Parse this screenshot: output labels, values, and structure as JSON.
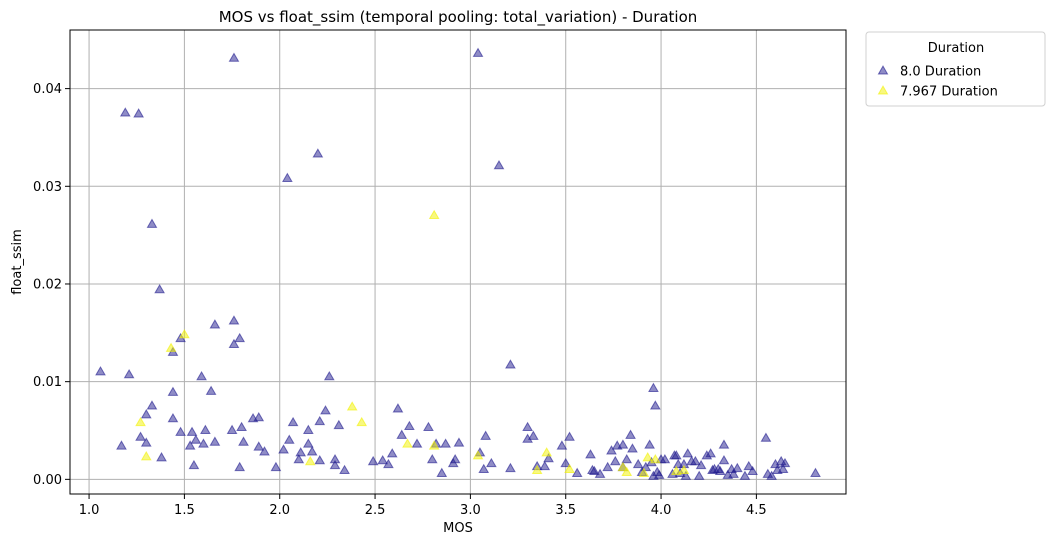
{
  "chart_data": {
    "type": "scatter",
    "title": "MOS vs float_ssim (temporal pooling: total_variation) - Duration",
    "xlabel": "MOS",
    "ylabel": "float_ssim",
    "xlim": [
      0.9,
      4.97
    ],
    "ylim": [
      -0.0015,
      0.046
    ],
    "xticks": [
      1.0,
      1.5,
      2.0,
      2.5,
      3.0,
      3.5,
      4.0,
      4.5
    ],
    "xtick_labels": [
      "1.0",
      "1.5",
      "2.0",
      "2.5",
      "3.0",
      "3.5",
      "4.0",
      "4.5"
    ],
    "yticks": [
      0.0,
      0.01,
      0.02,
      0.03,
      0.04
    ],
    "ytick_labels": [
      "0.00",
      "0.01",
      "0.02",
      "0.03",
      "0.04"
    ],
    "grid": true,
    "marker": "triangle-up",
    "legend": {
      "title": "Duration",
      "placement": "outside-top-right"
    },
    "series": [
      {
        "name": "8.0 Duration",
        "color": "#1f1a8e",
        "points": [
          [
            1.06,
            0.011
          ],
          [
            1.19,
            0.0375
          ],
          [
            1.26,
            0.0374
          ],
          [
            1.21,
            0.0107
          ],
          [
            1.33,
            0.0261
          ],
          [
            1.37,
            0.0194
          ],
          [
            1.17,
            0.0034
          ],
          [
            1.27,
            0.0043
          ],
          [
            1.3,
            0.0066
          ],
          [
            1.33,
            0.0075
          ],
          [
            1.3,
            0.0037
          ],
          [
            1.38,
            0.0022
          ],
          [
            1.44,
            0.013
          ],
          [
            1.48,
            0.0144
          ],
          [
            1.44,
            0.0089
          ],
          [
            1.44,
            0.0062
          ],
          [
            1.48,
            0.0048
          ],
          [
            1.54,
            0.0048
          ],
          [
            1.53,
            0.0034
          ],
          [
            1.56,
            0.004
          ],
          [
            1.55,
            0.0014
          ],
          [
            1.59,
            0.0105
          ],
          [
            1.64,
            0.009
          ],
          [
            1.66,
            0.0158
          ],
          [
            1.6,
            0.0036
          ],
          [
            1.61,
            0.005
          ],
          [
            1.66,
            0.0038
          ],
          [
            1.76,
            0.0431
          ],
          [
            1.76,
            0.0162
          ],
          [
            1.76,
            0.0138
          ],
          [
            1.79,
            0.0144
          ],
          [
            1.75,
            0.005
          ],
          [
            1.81,
            0.0038
          ],
          [
            1.8,
            0.0053
          ],
          [
            1.79,
            0.0012
          ],
          [
            1.86,
            0.0062
          ],
          [
            1.89,
            0.0063
          ],
          [
            1.89,
            0.0033
          ],
          [
            1.92,
            0.0028
          ],
          [
            1.98,
            0.0012
          ],
          [
            2.04,
            0.0308
          ],
          [
            2.05,
            0.004
          ],
          [
            2.07,
            0.0058
          ],
          [
            2.02,
            0.003
          ],
          [
            2.1,
            0.002
          ],
          [
            2.11,
            0.0027
          ],
          [
            2.15,
            0.005
          ],
          [
            2.15,
            0.0036
          ],
          [
            2.2,
            0.0333
          ],
          [
            2.21,
            0.0059
          ],
          [
            2.24,
            0.007
          ],
          [
            2.26,
            0.0105
          ],
          [
            2.17,
            0.0028
          ],
          [
            2.21,
            0.0019
          ],
          [
            2.29,
            0.0014
          ],
          [
            2.29,
            0.002
          ],
          [
            2.31,
            0.0055
          ],
          [
            2.34,
            0.0009
          ],
          [
            2.49,
            0.0018
          ],
          [
            2.54,
            0.0019
          ],
          [
            2.57,
            0.0015
          ],
          [
            2.59,
            0.0026
          ],
          [
            2.62,
            0.0072
          ],
          [
            2.64,
            0.0045
          ],
          [
            2.68,
            0.0054
          ],
          [
            2.72,
            0.0036
          ],
          [
            2.78,
            0.0053
          ],
          [
            2.8,
            0.002
          ],
          [
            2.82,
            0.0036
          ],
          [
            2.85,
            0.0006
          ],
          [
            2.87,
            0.0036
          ],
          [
            2.91,
            0.0016
          ],
          [
            2.92,
            0.002
          ],
          [
            2.94,
            0.0037
          ],
          [
            3.04,
            0.0436
          ],
          [
            3.15,
            0.0321
          ],
          [
            3.05,
            0.0027
          ],
          [
            3.08,
            0.0044
          ],
          [
            3.11,
            0.0016
          ],
          [
            3.07,
            0.001
          ],
          [
            3.21,
            0.0117
          ],
          [
            3.21,
            0.0011
          ],
          [
            3.3,
            0.0053
          ],
          [
            3.3,
            0.0041
          ],
          [
            3.33,
            0.0044
          ],
          [
            3.35,
            0.0013
          ],
          [
            3.39,
            0.0013
          ],
          [
            3.41,
            0.0021
          ],
          [
            3.48,
            0.0034
          ],
          [
            3.52,
            0.0043
          ],
          [
            3.5,
            0.0016
          ],
          [
            3.56,
            0.0006
          ],
          [
            3.63,
            0.0025
          ],
          [
            3.64,
            0.0009
          ],
          [
            3.65,
            0.0008
          ],
          [
            3.68,
            0.0005
          ],
          [
            3.72,
            0.0012
          ],
          [
            3.74,
            0.0029
          ],
          [
            3.76,
            0.0018
          ],
          [
            3.77,
            0.0034
          ],
          [
            3.8,
            0.0035
          ],
          [
            3.8,
            0.0012
          ],
          [
            3.82,
            0.002
          ],
          [
            3.84,
            0.0045
          ],
          [
            3.85,
            0.0031
          ],
          [
            3.88,
            0.0015
          ],
          [
            3.9,
            0.0007
          ],
          [
            3.92,
            0.0012
          ],
          [
            3.94,
            0.0035
          ],
          [
            3.96,
            0.0093
          ],
          [
            3.97,
            0.0075
          ],
          [
            3.95,
            0.0017
          ],
          [
            3.96,
            0.0003
          ],
          [
            3.98,
            0.0007
          ],
          [
            3.99,
            0.0004
          ],
          [
            4.0,
            0.002
          ],
          [
            4.02,
            0.002
          ],
          [
            4.06,
            0.0005
          ],
          [
            4.07,
            0.0024
          ],
          [
            4.08,
            0.0024
          ],
          [
            4.09,
            0.0015
          ],
          [
            4.1,
            0.0006
          ],
          [
            4.12,
            0.0015
          ],
          [
            4.13,
            0.0003
          ],
          [
            4.14,
            0.0026
          ],
          [
            4.16,
            0.0018
          ],
          [
            4.18,
            0.0018
          ],
          [
            4.2,
            0.0003
          ],
          [
            4.21,
            0.0014
          ],
          [
            4.24,
            0.0024
          ],
          [
            4.26,
            0.0026
          ],
          [
            4.27,
            0.0009
          ],
          [
            4.28,
            0.001
          ],
          [
            4.3,
            0.001
          ],
          [
            4.31,
            0.0008
          ],
          [
            4.33,
            0.0035
          ],
          [
            4.33,
            0.0019
          ],
          [
            4.35,
            0.0004
          ],
          [
            4.37,
            0.001
          ],
          [
            4.38,
            0.0005
          ],
          [
            4.4,
            0.0011
          ],
          [
            4.44,
            0.0003
          ],
          [
            4.46,
            0.0013
          ],
          [
            4.48,
            0.0008
          ],
          [
            4.55,
            0.0042
          ],
          [
            4.56,
            0.0005
          ],
          [
            4.58,
            0.0003
          ],
          [
            4.6,
            0.0015
          ],
          [
            4.61,
            0.0009
          ],
          [
            4.63,
            0.0018
          ],
          [
            4.64,
            0.001
          ],
          [
            4.65,
            0.0016
          ],
          [
            4.81,
            0.0006
          ]
        ]
      },
      {
        "name": "7.967 Duration",
        "color": "#f2f200",
        "points": [
          [
            1.27,
            0.0058
          ],
          [
            1.3,
            0.0023
          ],
          [
            1.43,
            0.0134
          ],
          [
            1.5,
            0.0148
          ],
          [
            2.16,
            0.0018
          ],
          [
            2.38,
            0.0074
          ],
          [
            2.43,
            0.0058
          ],
          [
            2.67,
            0.0036
          ],
          [
            2.81,
            0.027
          ],
          [
            2.81,
            0.0034
          ],
          [
            3.04,
            0.0024
          ],
          [
            3.35,
            0.0009
          ],
          [
            3.4,
            0.0027
          ],
          [
            3.52,
            0.001
          ],
          [
            3.8,
            0.0012
          ],
          [
            3.82,
            0.0007
          ],
          [
            3.91,
            0.0006
          ],
          [
            3.93,
            0.0022
          ],
          [
            3.97,
            0.002
          ],
          [
            4.08,
            0.0008
          ],
          [
            4.12,
            0.0009
          ]
        ]
      }
    ]
  }
}
